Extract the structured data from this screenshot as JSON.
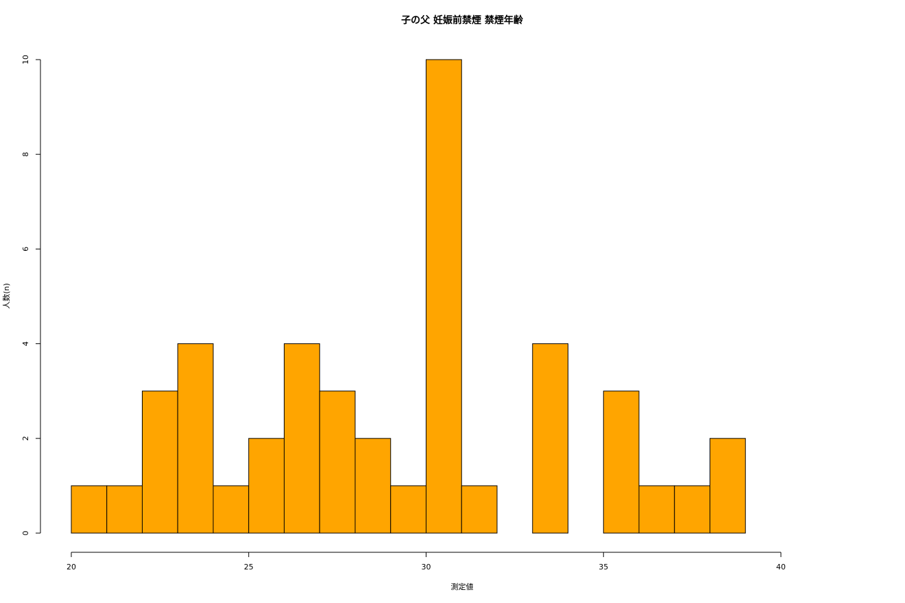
{
  "chart_data": {
    "type": "histogram",
    "title": "子の父 妊娠前禁煙 禁煙年齢",
    "x_label": "測定値",
    "y_label": "人数(n)",
    "bins": [
      20,
      21,
      22,
      23,
      24,
      25,
      26,
      27,
      28,
      29,
      30,
      31,
      32,
      33,
      34,
      35,
      36,
      37,
      38,
      39
    ],
    "values": [
      1,
      1,
      3,
      4,
      1,
      2,
      4,
      3,
      2,
      1,
      10,
      1,
      0,
      4,
      0,
      3,
      1,
      1,
      2
    ],
    "color": "#ffa500",
    "xlim": [
      20,
      40
    ],
    "xticks": [
      20,
      25,
      30,
      35,
      40
    ],
    "ylim": [
      0,
      10
    ],
    "yticks": [
      0,
      2,
      4,
      6,
      8,
      10
    ]
  }
}
